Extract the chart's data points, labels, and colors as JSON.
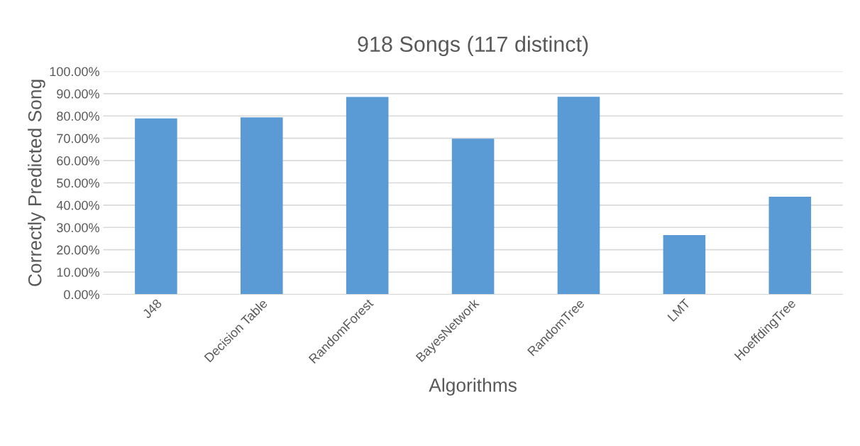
{
  "chart_data": {
    "type": "bar",
    "title": "918 Songs (117 distinct)",
    "xlabel": "Algorithms",
    "ylabel": "Correctly Predicted Song",
    "categories": [
      "J48",
      "Decision Table",
      "RandomForest",
      "BayesNetwork",
      "RandomTree",
      "LMT",
      "HoeffdingTree"
    ],
    "values": [
      78.9,
      79.4,
      88.5,
      69.8,
      88.6,
      26.6,
      43.8
    ],
    "color": "#5b9bd5",
    "ylim": [
      0,
      100
    ],
    "yticks": [
      {
        "value": 0,
        "label": "0.00%"
      },
      {
        "value": 10,
        "label": "10.00%"
      },
      {
        "value": 20,
        "label": "20.00%"
      },
      {
        "value": 30,
        "label": "30.00%"
      },
      {
        "value": 40,
        "label": "40.00%"
      },
      {
        "value": 50,
        "label": "50.00%"
      },
      {
        "value": 60,
        "label": "60.00%"
      },
      {
        "value": 70,
        "label": "70.00%"
      },
      {
        "value": 80,
        "label": "80.00%"
      },
      {
        "value": 90,
        "label": "90.00%"
      },
      {
        "value": 100,
        "label": "100.00%"
      }
    ],
    "grid": "y"
  }
}
